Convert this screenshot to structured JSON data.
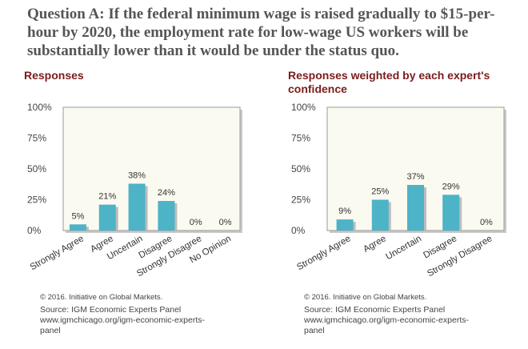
{
  "question": "Question A: If the federal minimum wage is raised gradually to $15-per-hour by 2020, the employment rate for low-wage US workers will be substantially lower than it would be under the status quo.",
  "copyright": "© 2016. Initiative on Global Markets.",
  "source": {
    "line1": "Source: IGM Economic Experts Panel",
    "line2": "www.igmchicago.org/igm-economic-experts-",
    "line3": "panel"
  },
  "colors": {
    "bar": "#4db3c7",
    "plot_bg": "#fbfaf0",
    "title": "#7a1c1c"
  },
  "chart_data": [
    {
      "type": "bar",
      "title": "Responses",
      "categories": [
        "Strongly Agree",
        "Agree",
        "Uncertain",
        "Disagree",
        "Strongly Disagree",
        "No Opinion"
      ],
      "values": [
        5,
        21,
        38,
        24,
        0,
        0
      ],
      "value_labels": [
        "5%",
        "21%",
        "38%",
        "24%",
        "0%",
        "0%"
      ],
      "y_ticks": [
        "0%",
        "25%",
        "50%",
        "75%",
        "100%"
      ],
      "ylim": [
        0,
        100
      ],
      "xlabel": "",
      "ylabel": "",
      "grid": false
    },
    {
      "type": "bar",
      "title": "Responses weighted by each expert's confidence",
      "categories": [
        "Strongly Agree",
        "Agree",
        "Uncertain",
        "Disagree",
        "Strongly Disagree"
      ],
      "values": [
        9,
        25,
        37,
        29,
        0
      ],
      "value_labels": [
        "9%",
        "25%",
        "37%",
        "29%",
        "0%"
      ],
      "y_ticks": [
        "0%",
        "25%",
        "50%",
        "75%",
        "100%"
      ],
      "ylim": [
        0,
        100
      ],
      "xlabel": "",
      "ylabel": "",
      "grid": false
    }
  ]
}
